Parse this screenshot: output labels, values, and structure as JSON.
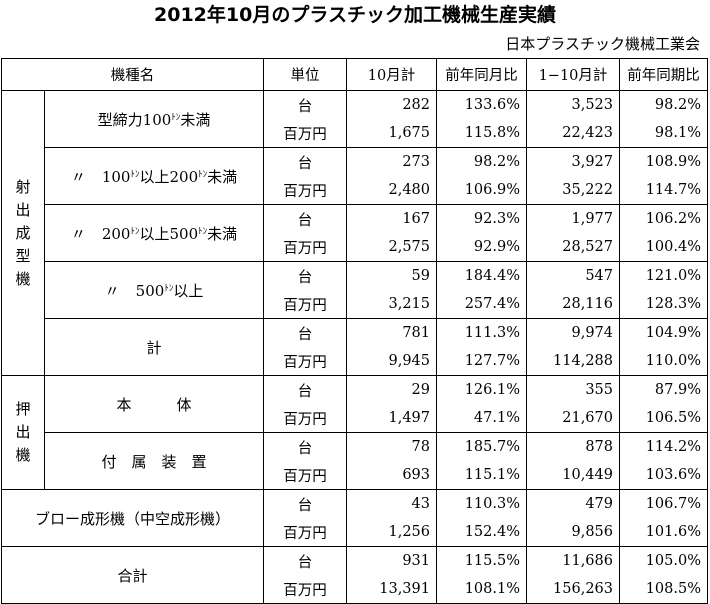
{
  "title": "2012年10月のプラスチック加工機械生産実績",
  "organization": "日本プラスチック機械工業会",
  "columns": {
    "kind": "機種名",
    "unit": "単位",
    "month": "10月計",
    "month_yoy": "前年同月比",
    "ytd": "1−10月計",
    "ytd_yoy": "前年同期比"
  },
  "units": {
    "count": "台",
    "million_yen": "百万円"
  },
  "categories": {
    "injection": [
      "射",
      "出",
      "成",
      "型",
      "機"
    ],
    "extrusion": [
      "押",
      "出",
      "機"
    ]
  },
  "ditto_mark": "〃",
  "ton_mark": "ﾄﾝ",
  "rows": [
    {
      "label_pre": "型締力100",
      "label_post": "未満",
      "count": [
        "282",
        "133.6%",
        "3,523",
        "98.2%"
      ],
      "yen": [
        "1,675",
        "115.8%",
        "22,423",
        "98.1%"
      ]
    },
    {
      "label_pre": "100",
      "label_mid": "以上200",
      "label_post": "未満",
      "count": [
        "273",
        "98.2%",
        "3,927",
        "108.9%"
      ],
      "yen": [
        "2,480",
        "106.9%",
        "35,222",
        "114.7%"
      ]
    },
    {
      "label_pre": "200",
      "label_mid": "以上500",
      "label_post": "未満",
      "count": [
        "167",
        "92.3%",
        "1,977",
        "106.2%"
      ],
      "yen": [
        "2,575",
        "92.9%",
        "28,527",
        "100.4%"
      ]
    },
    {
      "label_pre": "500",
      "label_post": "以上",
      "count": [
        "59",
        "184.4%",
        "547",
        "121.0%"
      ],
      "yen": [
        "3,215",
        "257.4%",
        "28,116",
        "128.3%"
      ]
    },
    {
      "label": "計",
      "count": [
        "781",
        "111.3%",
        "9,974",
        "104.9%"
      ],
      "yen": [
        "9,945",
        "127.7%",
        "114,288",
        "110.0%"
      ]
    },
    {
      "label": "本　　　体",
      "count": [
        "29",
        "126.1%",
        "355",
        "87.9%"
      ],
      "yen": [
        "1,497",
        "47.1%",
        "21,670",
        "106.5%"
      ]
    },
    {
      "label": "付　属　装　置",
      "count": [
        "78",
        "185.7%",
        "878",
        "114.2%"
      ],
      "yen": [
        "693",
        "115.1%",
        "10,449",
        "103.6%"
      ]
    },
    {
      "label": "ブロー成形機（中空成形機）",
      "count": [
        "43",
        "110.3%",
        "479",
        "106.7%"
      ],
      "yen": [
        "1,256",
        "152.4%",
        "9,856",
        "101.6%"
      ]
    },
    {
      "label": "合計",
      "count": [
        "931",
        "115.5%",
        "11,686",
        "105.0%"
      ],
      "yen": [
        "13,391",
        "108.1%",
        "156,263",
        "108.5%"
      ]
    }
  ]
}
